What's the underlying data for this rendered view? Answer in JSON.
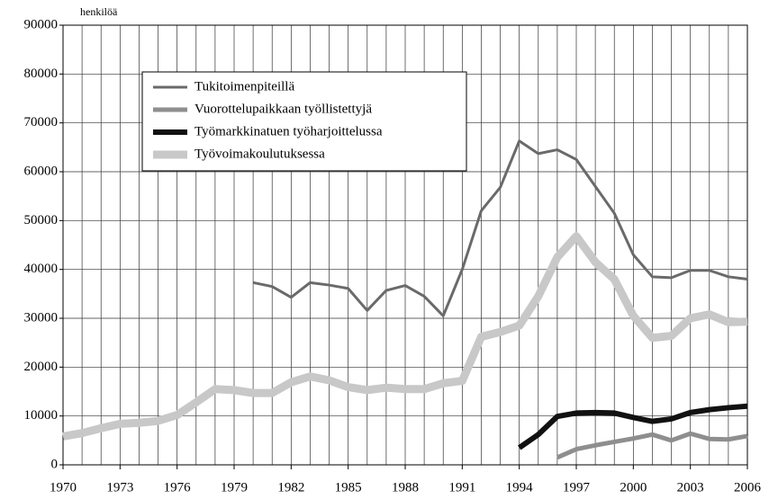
{
  "chart_data": {
    "type": "line",
    "y_label": "henkilöä",
    "x": [
      1970,
      1971,
      1972,
      1973,
      1974,
      1975,
      1976,
      1977,
      1978,
      1979,
      1980,
      1981,
      1982,
      1983,
      1984,
      1985,
      1986,
      1987,
      1988,
      1989,
      1990,
      1991,
      1992,
      1993,
      1994,
      1995,
      1996,
      1997,
      1998,
      1999,
      2000,
      2001,
      2002,
      2003,
      2004,
      2005,
      2006
    ],
    "xlim": [
      1970,
      2006
    ],
    "xticks": [
      1970,
      1973,
      1976,
      1979,
      1982,
      1985,
      1988,
      1991,
      1994,
      1997,
      2000,
      2003,
      2006
    ],
    "x_grid_step": 1,
    "ylim": [
      0,
      90000
    ],
    "yticks": [
      0,
      10000,
      20000,
      30000,
      40000,
      50000,
      60000,
      70000,
      80000,
      90000
    ],
    "grid": true,
    "legend": "upper left",
    "series": [
      {
        "name": "Tukitoimenpiteillä",
        "color": "#6a6a6a",
        "width": 3,
        "values": [
          null,
          null,
          null,
          null,
          null,
          null,
          null,
          null,
          null,
          null,
          37300,
          36500,
          34300,
          37300,
          36800,
          36100,
          31600,
          35700,
          36700,
          34500,
          30500,
          40000,
          52000,
          56800,
          66300,
          63700,
          64500,
          62500,
          57000,
          51500,
          43000,
          38500,
          38300,
          39800,
          39800,
          38500,
          38000
        ]
      },
      {
        "name": "Vuorottelupaikkaan työllistettyjä",
        "color": "#8e8e8e",
        "width": 5,
        "values": [
          null,
          null,
          null,
          null,
          null,
          null,
          null,
          null,
          null,
          null,
          null,
          null,
          null,
          null,
          null,
          null,
          null,
          null,
          null,
          null,
          null,
          null,
          null,
          null,
          null,
          null,
          1500,
          3200,
          4000,
          4700,
          5400,
          6200,
          5000,
          6400,
          5300,
          5200,
          5900
        ]
      },
      {
        "name": "Työmarkkinatuen työharjoittelussa",
        "color": "#111111",
        "width": 6,
        "values": [
          null,
          null,
          null,
          null,
          null,
          null,
          null,
          null,
          null,
          null,
          null,
          null,
          null,
          null,
          null,
          null,
          null,
          null,
          null,
          null,
          null,
          null,
          null,
          null,
          3500,
          6200,
          9900,
          10600,
          10700,
          10600,
          9700,
          8900,
          9400,
          10700,
          11300,
          11700,
          12000
        ]
      },
      {
        "name": "Työvoimakoulutuksessa",
        "color": "#c8c8c8",
        "width": 9,
        "values": [
          5800,
          6500,
          7500,
          8400,
          8600,
          9000,
          10200,
          12800,
          15500,
          15300,
          14700,
          14700,
          16900,
          18100,
          17300,
          15900,
          15300,
          15800,
          15500,
          15500,
          16700,
          17200,
          26200,
          27200,
          28500,
          34500,
          42500,
          46800,
          41500,
          38000,
          30500,
          26000,
          26400,
          30000,
          30800,
          29200,
          29300
        ]
      }
    ]
  }
}
